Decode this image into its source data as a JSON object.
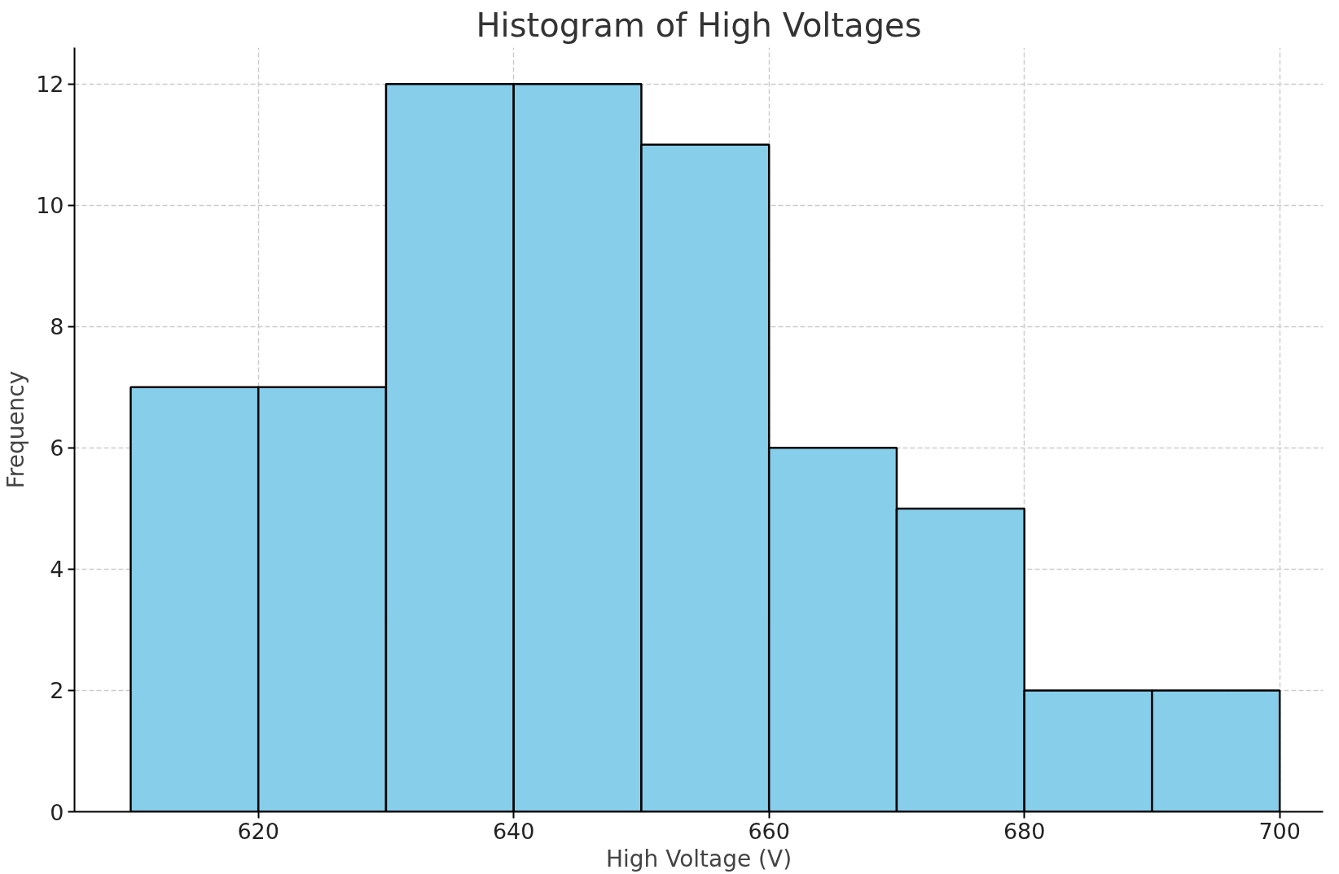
{
  "chart_data": {
    "type": "histogram",
    "title": "Histogram of High Voltages",
    "xlabel": "High Voltage (V)",
    "ylabel": "Frequency",
    "bins": [
      610,
      620,
      630,
      640,
      650,
      660,
      670,
      680,
      690,
      700
    ],
    "values": [
      7,
      7,
      12,
      12,
      11,
      6,
      5,
      2,
      2
    ],
    "color": "#87ceeb",
    "xlim": [
      605.6,
      703.4
    ],
    "ylim": [
      0,
      12.6
    ],
    "xticks": [
      620,
      640,
      660,
      680,
      700
    ],
    "yticks": [
      0,
      2,
      4,
      6,
      8,
      10,
      12
    ],
    "grid": true
  }
}
